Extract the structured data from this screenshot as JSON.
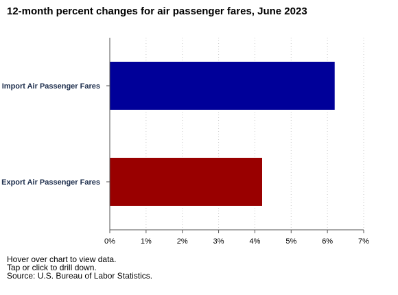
{
  "chart_data": {
    "type": "bar",
    "orientation": "horizontal",
    "title": "12-month percent changes for air passenger fares, June 2023",
    "categories": [
      "Import Air Passenger Fares",
      "Export Air Passenger Fares"
    ],
    "values": [
      6.2,
      4.2
    ],
    "colors": [
      "#000099",
      "#990000"
    ],
    "xlim": [
      0,
      7
    ],
    "xticks": [
      0,
      1,
      2,
      3,
      4,
      5,
      6,
      7
    ],
    "xtick_labels": [
      "0%",
      "1%",
      "2%",
      "3%",
      "4%",
      "5%",
      "6%",
      "7%"
    ],
    "xlabel": "",
    "ylabel": "",
    "grid": "vertical dotted",
    "legend": "none"
  },
  "notes": {
    "hover": "Hover over chart to view data.",
    "tap": "Tap or click to drill down.",
    "source": "Source: U.S. Bureau of Labor Statistics."
  }
}
